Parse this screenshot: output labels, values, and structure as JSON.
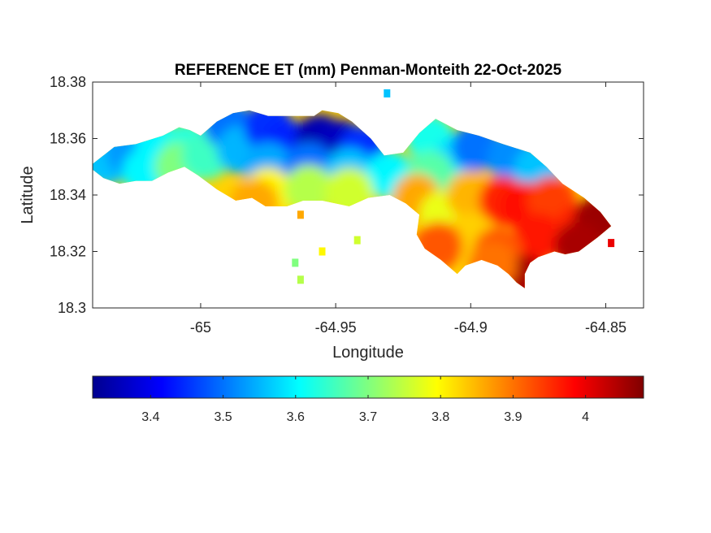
{
  "title": "REFERENCE ET (mm) Penman-Monteith 22-Oct-2025",
  "chart_data": {
    "type": "heatmap",
    "title": "REFERENCE ET (mm) Penman-Monteith 22-Oct-2025",
    "xlabel": "Longitude",
    "ylabel": "Latitude",
    "xlim": [
      -65.04,
      -64.836
    ],
    "ylim": [
      18.3,
      18.38
    ],
    "xticks": [
      -65,
      -64.95,
      -64.9,
      -64.85
    ],
    "xtick_labels": [
      "-65",
      "-64.95",
      "-64.9",
      "-64.85"
    ],
    "yticks": [
      18.3,
      18.32,
      18.34,
      18.36,
      18.38
    ],
    "ytick_labels": [
      "18.3",
      "18.32",
      "18.34",
      "18.36",
      "18.38"
    ],
    "colormap": "jet",
    "color_range": [
      3.32,
      4.08
    ],
    "colorbar_ticks": [
      3.4,
      3.5,
      3.6,
      3.7,
      3.8,
      3.9,
      4
    ],
    "colorbar_tick_labels": [
      "3.4",
      "3.5",
      "3.6",
      "3.7",
      "3.8",
      "3.9",
      "4"
    ],
    "colorbar_location": "bottom",
    "grid": false,
    "island_outline_lonlat": [
      [
        -65.04,
        18.351
      ],
      [
        -65.032,
        18.357
      ],
      [
        -65.024,
        18.358
      ],
      [
        -65.014,
        18.361
      ],
      [
        -65.008,
        18.364
      ],
      [
        -65.004,
        18.363
      ],
      [
        -65.0,
        18.361
      ],
      [
        -64.994,
        18.366
      ],
      [
        -64.988,
        18.369
      ],
      [
        -64.982,
        18.37
      ],
      [
        -64.975,
        18.368
      ],
      [
        -64.968,
        18.368
      ],
      [
        -64.958,
        18.368
      ],
      [
        -64.955,
        18.37
      ],
      [
        -64.949,
        18.369
      ],
      [
        -64.944,
        18.366
      ],
      [
        -64.937,
        18.36
      ],
      [
        -64.932,
        18.354
      ],
      [
        -64.925,
        18.355
      ],
      [
        -64.919,
        18.362
      ],
      [
        -64.913,
        18.367
      ],
      [
        -64.905,
        18.363
      ],
      [
        -64.897,
        18.361
      ],
      [
        -64.888,
        18.358
      ],
      [
        -64.878,
        18.355
      ],
      [
        -64.872,
        18.35
      ],
      [
        -64.866,
        18.344
      ],
      [
        -64.858,
        18.339
      ],
      [
        -64.852,
        18.334
      ],
      [
        -64.848,
        18.329
      ],
      [
        -64.853,
        18.325
      ],
      [
        -64.86,
        18.32
      ],
      [
        -64.865,
        18.319
      ],
      [
        -64.869,
        18.32
      ],
      [
        -64.875,
        18.318
      ],
      [
        -64.878,
        18.316
      ],
      [
        -64.88,
        18.312
      ],
      [
        -64.88,
        18.307
      ],
      [
        -64.883,
        18.309
      ],
      [
        -64.886,
        18.312
      ],
      [
        -64.89,
        18.315
      ],
      [
        -64.896,
        18.317
      ],
      [
        -64.902,
        18.315
      ],
      [
        -64.905,
        18.312
      ],
      [
        -64.911,
        18.317
      ],
      [
        -64.917,
        18.321
      ],
      [
        -64.92,
        18.326
      ],
      [
        -64.919,
        18.333
      ],
      [
        -64.924,
        18.337
      ],
      [
        -64.93,
        18.34
      ],
      [
        -64.938,
        18.339
      ],
      [
        -64.945,
        18.336
      ],
      [
        -64.955,
        18.338
      ],
      [
        -64.962,
        18.338
      ],
      [
        -64.968,
        18.336
      ],
      [
        -64.976,
        18.336
      ],
      [
        -64.981,
        18.339
      ],
      [
        -64.987,
        18.338
      ],
      [
        -64.994,
        18.342
      ],
      [
        -65.001,
        18.347
      ],
      [
        -65.006,
        18.35
      ],
      [
        -65.012,
        18.348
      ],
      [
        -65.018,
        18.345
      ],
      [
        -65.024,
        18.345
      ],
      [
        -65.03,
        18.344
      ],
      [
        -65.036,
        18.346
      ],
      [
        -65.04,
        18.349
      ]
    ],
    "field_samples": [
      {
        "lon": -65.035,
        "lat": 18.352,
        "et": 3.56
      },
      {
        "lon": -65.026,
        "lat": 18.355,
        "et": 3.53
      },
      {
        "lon": -65.015,
        "lat": 18.357,
        "et": 3.6
      },
      {
        "lon": -65.02,
        "lat": 18.348,
        "et": 3.6
      },
      {
        "lon": -65.005,
        "lat": 18.357,
        "et": 3.63
      },
      {
        "lon": -65.008,
        "lat": 18.35,
        "et": 3.7
      },
      {
        "lon": -64.998,
        "lat": 18.354,
        "et": 3.65
      },
      {
        "lon": -64.99,
        "lat": 18.365,
        "et": 3.5
      },
      {
        "lon": -64.985,
        "lat": 18.356,
        "et": 3.55
      },
      {
        "lon": -64.975,
        "lat": 18.364,
        "et": 3.45
      },
      {
        "lon": -64.968,
        "lat": 18.358,
        "et": 3.44
      },
      {
        "lon": -64.956,
        "lat": 18.36,
        "et": 3.35
      },
      {
        "lon": -64.948,
        "lat": 18.358,
        "et": 3.36
      },
      {
        "lon": -64.94,
        "lat": 18.356,
        "et": 3.45
      },
      {
        "lon": -64.975,
        "lat": 18.35,
        "et": 3.54
      },
      {
        "lon": -64.96,
        "lat": 18.35,
        "et": 3.5
      },
      {
        "lon": -64.945,
        "lat": 18.348,
        "et": 3.56
      },
      {
        "lon": -64.93,
        "lat": 18.347,
        "et": 3.6
      },
      {
        "lon": -64.975,
        "lat": 18.341,
        "et": 3.8
      },
      {
        "lon": -64.96,
        "lat": 18.342,
        "et": 3.74
      },
      {
        "lon": -64.945,
        "lat": 18.341,
        "et": 3.76
      },
      {
        "lon": -64.98,
        "lat": 18.337,
        "et": 3.86
      },
      {
        "lon": -64.915,
        "lat": 18.36,
        "et": 3.62
      },
      {
        "lon": -64.905,
        "lat": 18.352,
        "et": 3.58
      },
      {
        "lon": -64.915,
        "lat": 18.347,
        "et": 3.67
      },
      {
        "lon": -64.898,
        "lat": 18.357,
        "et": 3.5
      },
      {
        "lon": -64.885,
        "lat": 18.353,
        "et": 3.52
      },
      {
        "lon": -64.875,
        "lat": 18.349,
        "et": 3.56
      },
      {
        "lon": -64.92,
        "lat": 18.339,
        "et": 3.86
      },
      {
        "lon": -64.91,
        "lat": 18.333,
        "et": 3.78
      },
      {
        "lon": -64.9,
        "lat": 18.34,
        "et": 3.85
      },
      {
        "lon": -64.9,
        "lat": 18.325,
        "et": 3.83
      },
      {
        "lon": -64.888,
        "lat": 18.338,
        "et": 3.96
      },
      {
        "lon": -64.88,
        "lat": 18.336,
        "et": 3.98
      },
      {
        "lon": -64.87,
        "lat": 18.338,
        "et": 3.94
      },
      {
        "lon": -64.875,
        "lat": 18.325,
        "et": 3.97
      },
      {
        "lon": -64.89,
        "lat": 18.32,
        "et": 3.92
      },
      {
        "lon": -64.86,
        "lat": 18.328,
        "et": 3.96
      },
      {
        "lon": -64.853,
        "lat": 18.331,
        "et": 4.06
      },
      {
        "lon": -64.86,
        "lat": 18.322,
        "et": 4.05
      },
      {
        "lon": -64.88,
        "lat": 18.31,
        "et": 4.05
      },
      {
        "lon": -64.912,
        "lat": 18.322,
        "et": 3.92
      },
      {
        "lon": -64.892,
        "lat": 18.315,
        "et": 3.9
      }
    ],
    "islets": [
      {
        "lon": -64.963,
        "lat": 18.333,
        "et": 3.86
      },
      {
        "lon": -64.942,
        "lat": 18.324,
        "et": 3.76
      },
      {
        "lon": -64.955,
        "lat": 18.32,
        "et": 3.8
      },
      {
        "lon": -64.965,
        "lat": 18.316,
        "et": 3.7
      },
      {
        "lon": -64.963,
        "lat": 18.31,
        "et": 3.74
      },
      {
        "lon": -64.848,
        "lat": 18.323,
        "et": 4.0
      },
      {
        "lon": -64.931,
        "lat": 18.376,
        "et": 3.56
      }
    ]
  }
}
